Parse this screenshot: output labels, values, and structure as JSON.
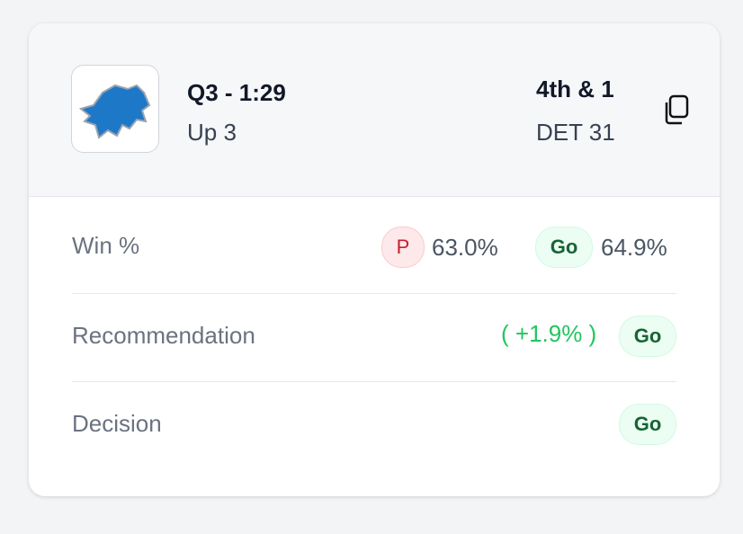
{
  "header": {
    "quarter_time": "Q3 - 1:29",
    "score_state": "Up 3",
    "down_distance": "4th & 1",
    "field_position": "DET 31"
  },
  "rows": [
    {
      "label": "Win %",
      "punt_badge": "P",
      "punt_value": "63.0%",
      "go_badge": "Go",
      "go_value": "64.9%"
    },
    {
      "label": "Recommendation",
      "delta": "( +1.9% )",
      "badge": "Go"
    },
    {
      "label": "Decision",
      "badge": "Go"
    }
  ]
}
